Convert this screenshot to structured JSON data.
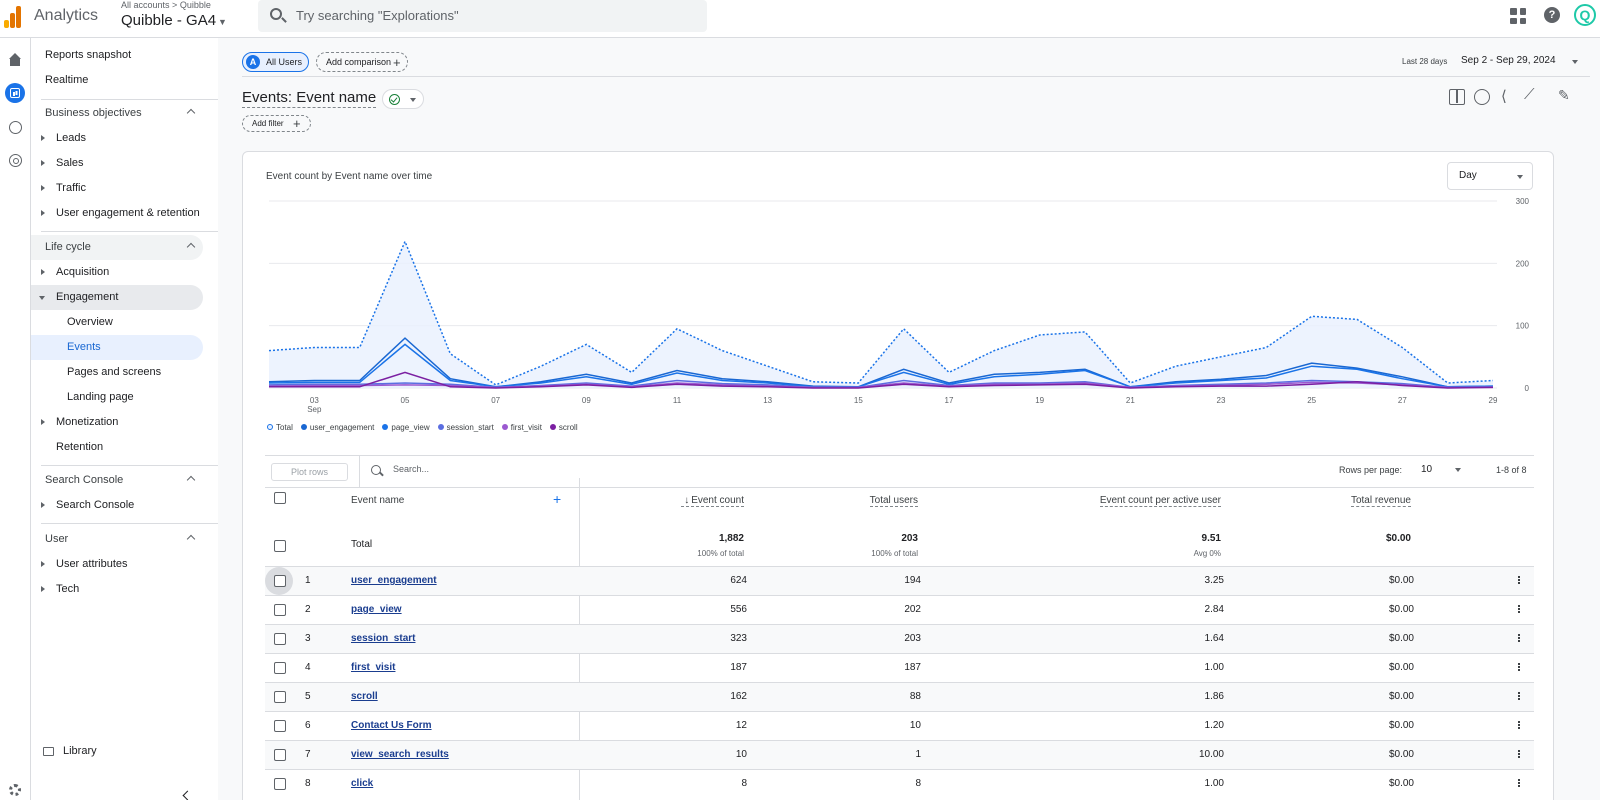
{
  "topbar": {
    "app_name": "Analytics",
    "breadcrumb": [
      "All accounts",
      "Quibble"
    ],
    "property": "Quibble - GA4",
    "search_placeholder": "Try searching \"Explorations\"",
    "account_initial": "Q"
  },
  "nav": {
    "reports_snapshot": "Reports snapshot",
    "realtime": "Realtime",
    "business_objectives": "Business objectives",
    "bo_items": [
      "Leads",
      "Sales",
      "Traffic",
      "User engagement & retention"
    ],
    "life_cycle": "Life cycle",
    "acquisition": "Acquisition",
    "engagement": "Engagement",
    "engagement_items": [
      "Overview",
      "Events",
      "Pages and screens",
      "Landing page"
    ],
    "monetization": "Monetization",
    "retention": "Retention",
    "search_console_section": "Search Console",
    "search_console_item": "Search Console",
    "user_section": "User",
    "user_items": [
      "User attributes",
      "Tech"
    ],
    "library": "Library"
  },
  "header": {
    "all_users": "All Users",
    "all_users_avatar": "A",
    "add_comparison": "Add comparison",
    "date_label": "Last 28 days",
    "date_range": "Sep 2 - Sep 29, 2024",
    "page_title": "Events: Event name",
    "add_filter": "Add filter"
  },
  "chart_title": "Event count by Event name over time",
  "granularity": "Day",
  "chart_data": {
    "type": "line",
    "title": "Event count by Event name over time",
    "x_ticks": [
      "03",
      "05",
      "07",
      "09",
      "11",
      "13",
      "15",
      "17",
      "19",
      "21",
      "23",
      "25",
      "27",
      "29"
    ],
    "x_tick_sub": "Sep",
    "y_ticks": [
      0,
      100,
      200,
      300
    ],
    "ylim": [
      0,
      300
    ],
    "x": [
      2,
      3,
      4,
      5,
      6,
      7,
      8,
      9,
      10,
      11,
      12,
      13,
      14,
      15,
      16,
      17,
      18,
      19,
      20,
      21,
      22,
      23,
      24,
      25,
      26,
      27,
      28,
      29
    ],
    "series": [
      {
        "name": "Total",
        "color": "#1a73e8",
        "style": "dotted-area",
        "values": [
          60,
          65,
          65,
          235,
          55,
          5,
          35,
          70,
          25,
          95,
          60,
          35,
          10,
          8,
          95,
          25,
          60,
          85,
          90,
          8,
          35,
          50,
          65,
          115,
          110,
          65,
          8,
          12
        ]
      },
      {
        "name": "user_engagement",
        "color": "#1967d2",
        "values": [
          10,
          12,
          12,
          80,
          15,
          2,
          10,
          22,
          8,
          28,
          15,
          10,
          3,
          2,
          30,
          8,
          22,
          25,
          30,
          2,
          10,
          14,
          20,
          40,
          32,
          18,
          2,
          3
        ]
      },
      {
        "name": "page_view",
        "color": "#1a73e8",
        "values": [
          8,
          9,
          9,
          70,
          12,
          2,
          8,
          18,
          6,
          24,
          12,
          8,
          2,
          2,
          25,
          6,
          18,
          22,
          28,
          2,
          8,
          12,
          16,
          35,
          30,
          15,
          2,
          3
        ]
      },
      {
        "name": "session_start",
        "color": "#5b6ee1",
        "values": [
          5,
          6,
          6,
          8,
          6,
          1,
          4,
          8,
          3,
          12,
          7,
          5,
          1,
          1,
          12,
          4,
          8,
          8,
          10,
          1,
          4,
          6,
          8,
          12,
          10,
          7,
          1,
          2
        ]
      },
      {
        "name": "first_visit",
        "color": "#9b59d0",
        "values": [
          3,
          4,
          4,
          5,
          4,
          1,
          3,
          6,
          2,
          8,
          5,
          3,
          1,
          1,
          8,
          3,
          6,
          6,
          8,
          1,
          3,
          4,
          6,
          9,
          8,
          5,
          1,
          1
        ]
      },
      {
        "name": "scroll",
        "color": "#7b1fa2",
        "values": [
          2,
          2,
          2,
          25,
          2,
          0,
          2,
          5,
          1,
          6,
          3,
          2,
          0,
          0,
          6,
          2,
          4,
          5,
          6,
          0,
          2,
          3,
          3,
          6,
          10,
          4,
          0,
          1
        ]
      }
    ]
  },
  "table": {
    "plot_rows": "Plot rows",
    "search_placeholder": "Search...",
    "rows_per_page_label": "Rows per page:",
    "rows_per_page": "10",
    "pager": "1-8 of 8",
    "columns": [
      "Event name",
      "Event count",
      "Total users",
      "Event count per active user",
      "Total revenue"
    ],
    "total": {
      "label": "Total",
      "event_count": "1,882",
      "event_count_sub": "100% of total",
      "total_users": "203",
      "total_users_sub": "100% of total",
      "per_user": "9.51",
      "per_user_sub": "Avg 0%",
      "revenue": "$0.00"
    },
    "rows": [
      {
        "n": "1",
        "name": "user_engagement",
        "count": "624",
        "users": "194",
        "per_user": "3.25",
        "revenue": "$0.00"
      },
      {
        "n": "2",
        "name": "page_view",
        "count": "556",
        "users": "202",
        "per_user": "2.84",
        "revenue": "$0.00"
      },
      {
        "n": "3",
        "name": "session_start",
        "count": "323",
        "users": "203",
        "per_user": "1.64",
        "revenue": "$0.00"
      },
      {
        "n": "4",
        "name": "first_visit",
        "count": "187",
        "users": "187",
        "per_user": "1.00",
        "revenue": "$0.00"
      },
      {
        "n": "5",
        "name": "scroll",
        "count": "162",
        "users": "88",
        "per_user": "1.86",
        "revenue": "$0.00"
      },
      {
        "n": "6",
        "name": "Contact Us Form",
        "count": "12",
        "users": "10",
        "per_user": "1.20",
        "revenue": "$0.00"
      },
      {
        "n": "7",
        "name": "view_search_results",
        "count": "10",
        "users": "1",
        "per_user": "10.00",
        "revenue": "$0.00"
      },
      {
        "n": "8",
        "name": "click",
        "count": "8",
        "users": "8",
        "per_user": "1.00",
        "revenue": "$0.00"
      }
    ]
  }
}
